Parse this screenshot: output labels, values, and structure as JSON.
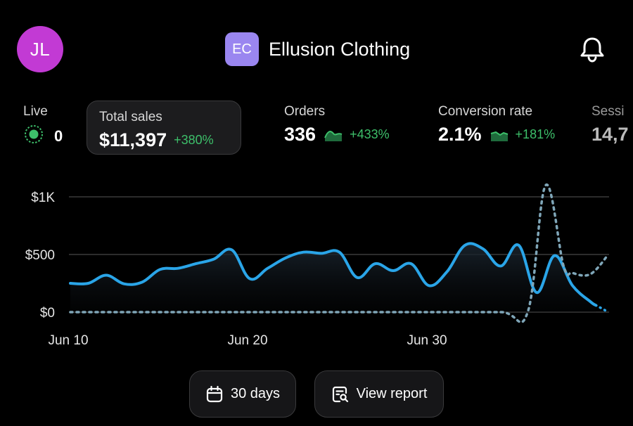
{
  "header": {
    "avatar_initials": "JL",
    "store_badge": "EC",
    "store_name": "Ellusion Clothing",
    "notification_icon": "bell-icon"
  },
  "metrics": {
    "live": {
      "label": "Live",
      "value": "0",
      "icon": "live-pulse-icon"
    },
    "total_sales": {
      "label": "Total sales",
      "value": "$11,397",
      "change": "+380%"
    },
    "orders": {
      "label": "Orders",
      "value": "336",
      "change": "+433%"
    },
    "conversion": {
      "label": "Conversion rate",
      "value": "2.1%",
      "change": "+181%"
    },
    "sessions": {
      "label": "Sessi",
      "value": "14,7"
    }
  },
  "colors": {
    "accent": "#2aa5e8",
    "positive": "#3dbf6a",
    "comparison": "#7fa6b8"
  },
  "chart_data": {
    "type": "line",
    "ylim": [
      0,
      1000
    ],
    "yticks": [
      {
        "value": 0,
        "label": "$0"
      },
      {
        "value": 500,
        "label": "$500"
      },
      {
        "value": 1000,
        "label": "$1K"
      }
    ],
    "xticks": [
      {
        "day": 0,
        "label": "Jun 10"
      },
      {
        "day": 10,
        "label": "Jun 20"
      },
      {
        "day": 20,
        "label": "Jun 30"
      }
    ],
    "grid": true,
    "series": [
      {
        "style": "solid",
        "points": [
          [
            0,
            250
          ],
          [
            1,
            250
          ],
          [
            2,
            320
          ],
          [
            3,
            245
          ],
          [
            4,
            260
          ],
          [
            5,
            370
          ],
          [
            6,
            380
          ],
          [
            7,
            420
          ],
          [
            8,
            460
          ],
          [
            9,
            540
          ],
          [
            10,
            290
          ],
          [
            11,
            380
          ],
          [
            12,
            470
          ],
          [
            13,
            520
          ],
          [
            14,
            510
          ],
          [
            15,
            520
          ],
          [
            16,
            300
          ],
          [
            17,
            420
          ],
          [
            18,
            360
          ],
          [
            19,
            420
          ],
          [
            20,
            230
          ],
          [
            21,
            350
          ],
          [
            22,
            580
          ],
          [
            23,
            550
          ],
          [
            24,
            400
          ],
          [
            25,
            580
          ],
          [
            26,
            170
          ],
          [
            27,
            490
          ],
          [
            28,
            230
          ],
          [
            29,
            90
          ],
          [
            29.3,
            60
          ]
        ]
      },
      {
        "style": "dotted",
        "points": [
          [
            29.3,
            60
          ],
          [
            30,
            0
          ]
        ]
      },
      {
        "style": "dashed",
        "points": [
          [
            0,
            0
          ],
          [
            5,
            0
          ],
          [
            10,
            0
          ],
          [
            15,
            0
          ],
          [
            20,
            0
          ],
          [
            24,
            0
          ],
          [
            25.5,
            0
          ],
          [
            26.5,
            1100
          ],
          [
            27.5,
            400
          ],
          [
            28,
            340
          ],
          [
            29,
            330
          ],
          [
            30,
            500
          ]
        ]
      }
    ]
  },
  "buttons": {
    "days": {
      "label": "30 days",
      "icon": "calendar-icon"
    },
    "report": {
      "label": "View report",
      "icon": "report-search-icon"
    }
  }
}
